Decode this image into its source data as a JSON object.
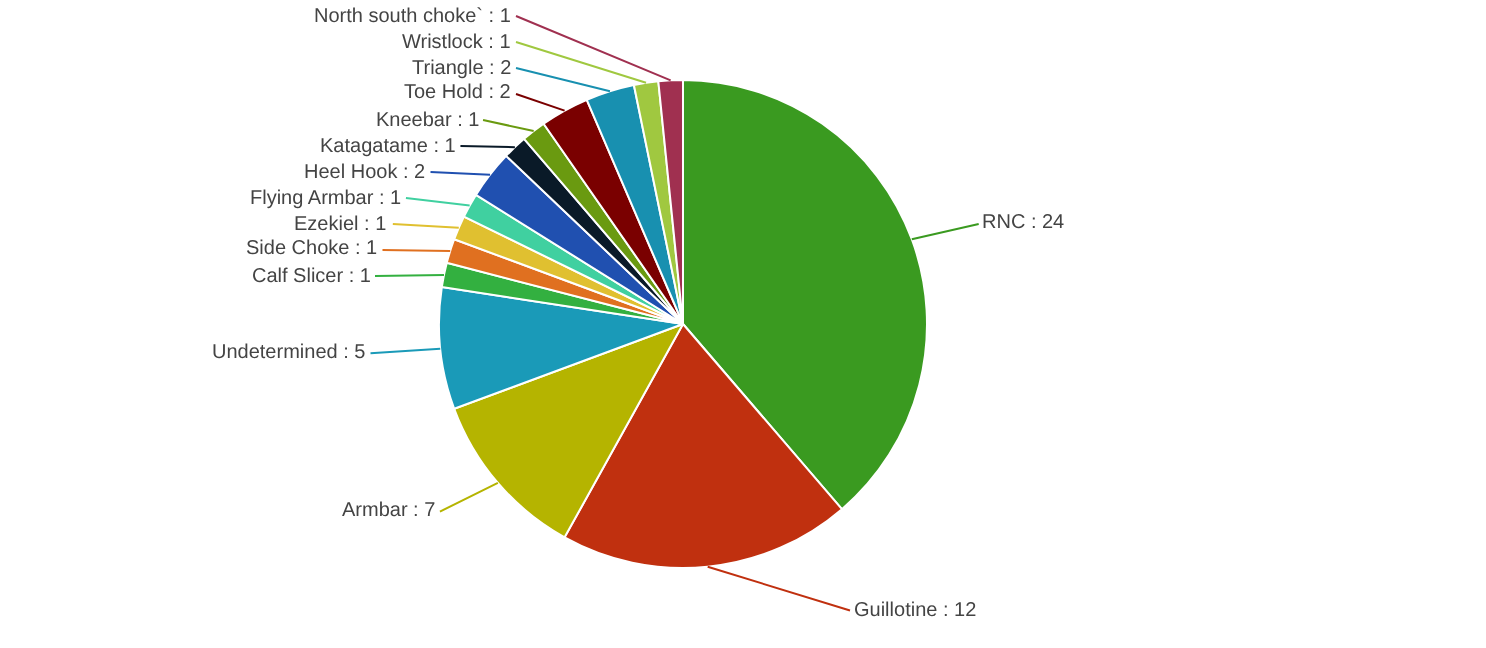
{
  "chart_data": {
    "type": "pie",
    "value_labels": [
      ": 24",
      ": 12",
      ": 7",
      ": 5",
      ": 1",
      ": 1",
      ": 1",
      ": 1",
      ": 2",
      ": 1",
      ": 1",
      ": 2",
      ": 2",
      ": 1",
      ": 1"
    ],
    "categories": [
      "RNC",
      "Guillotine",
      "Armbar",
      "Undetermined",
      "Calf Slicer",
      "Side Choke",
      "Ezekiel",
      "Flying Armbar",
      "Heel Hook",
      "Katagatame",
      "Kneebar",
      "Toe Hold",
      "Triangle",
      "Wristlock",
      "North south choke`"
    ],
    "values": [
      24,
      12,
      7,
      5,
      1,
      1,
      1,
      1,
      2,
      1,
      1,
      2,
      2,
      1,
      1
    ],
    "colors": [
      "#3a9a20",
      "#c0300f",
      "#b5b400",
      "#1a9ab8",
      "#33b040",
      "#e07020",
      "#e0c030",
      "#40d0a0",
      "#2050b0",
      "#0a1a28",
      "#6a9a10",
      "#7a0000",
      "#1890b0",
      "#a0c840",
      "#a03050"
    ]
  }
}
